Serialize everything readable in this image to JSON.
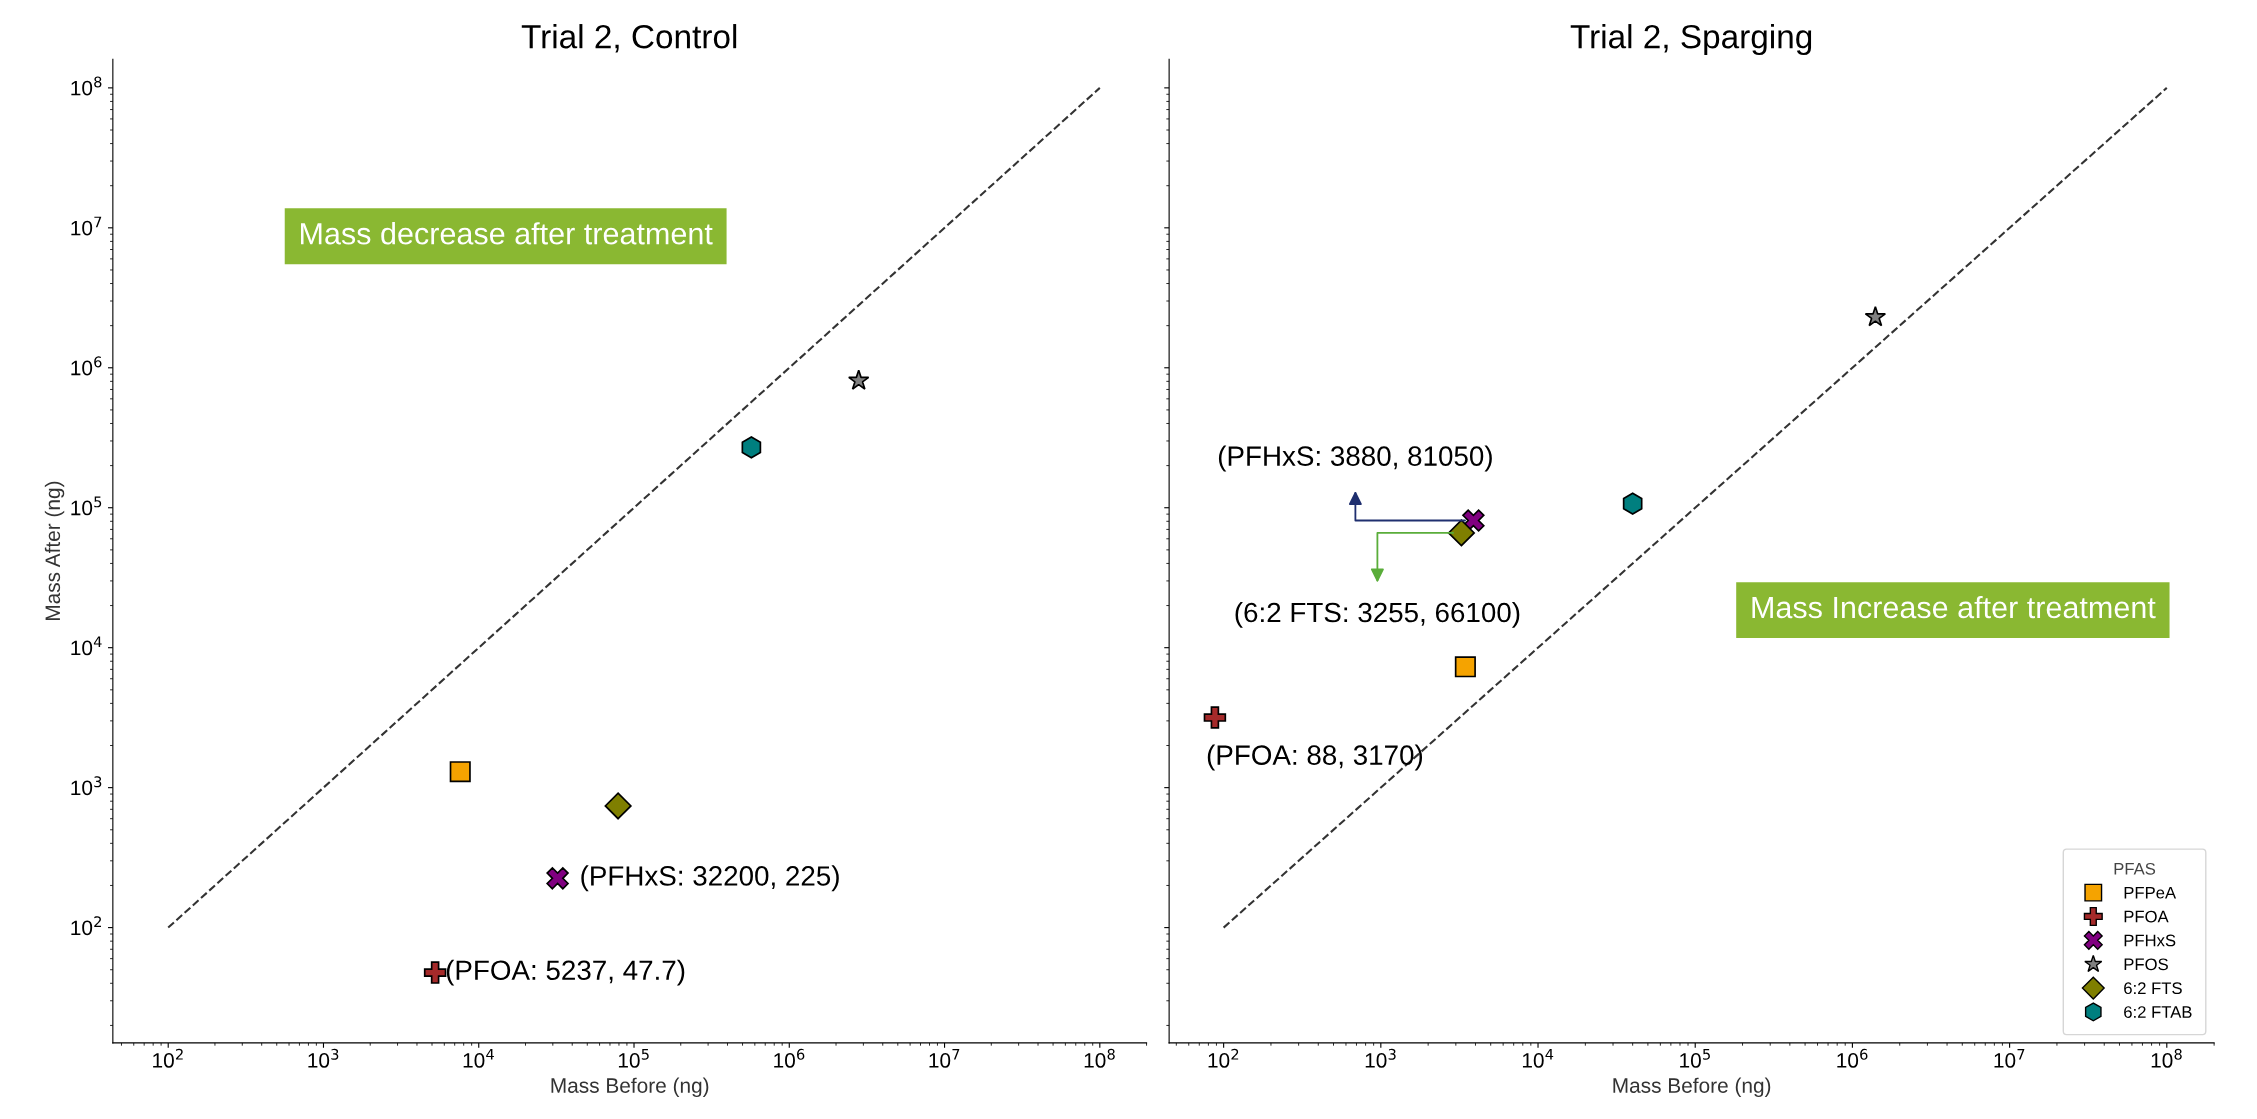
{
  "chart_data": [
    {
      "type": "scatter",
      "title": "Trial 2, Control",
      "xlabel": "Mass Before (ng)",
      "ylabel": "Mass After (ng)",
      "log": "xy",
      "xlim": [
        44,
        200000000
      ],
      "ylim": [
        15,
        160000000
      ],
      "xticks": [
        {
          "value": 100,
          "label": "10$^{2}$"
        },
        {
          "value": 1000,
          "label": "10$^{3}$"
        },
        {
          "value": 10000,
          "label": "10$^{4}$"
        },
        {
          "value": 100000,
          "label": "10$^{5}$"
        },
        {
          "value": 1000000,
          "label": "10$^{6}$"
        },
        {
          "value": 10000000,
          "label": "10$^{7}$"
        },
        {
          "value": 100000000,
          "label": "10$^{8}$"
        }
      ],
      "yticks": [
        {
          "value": 100,
          "label": "10$^{2}$"
        },
        {
          "value": 1000,
          "label": "10$^{3}$"
        },
        {
          "value": 10000,
          "label": "10$^{4}$"
        },
        {
          "value": 100000,
          "label": "10$^{5}$"
        },
        {
          "value": 1000000,
          "label": "10$^{6}$"
        },
        {
          "value": 10000000,
          "label": "10$^{7}$"
        },
        {
          "value": 100000000,
          "label": "10$^{8}$"
        }
      ],
      "grid": false,
      "legend": false,
      "series": [
        {
          "type": "line",
          "x": [
            100,
            100000000
          ],
          "values": [
            100,
            100000000
          ],
          "color": "#333333",
          "line_style": "dashed",
          "marker": "none"
        },
        {
          "x": [
            7600
          ],
          "values": [
            1300
          ],
          "color": "#f5a300",
          "marker": "square"
        },
        {
          "x": [
            5237
          ],
          "values": [
            47.7
          ],
          "color": "#a52a2a",
          "marker": "plus"
        },
        {
          "x": [
            32200
          ],
          "values": [
            225
          ],
          "color": "#800080",
          "marker": "x"
        },
        {
          "x": [
            2800000
          ],
          "values": [
            810000
          ],
          "color": "#808080",
          "marker": "star"
        },
        {
          "x": [
            79000
          ],
          "values": [
            740
          ],
          "color": "#7f7f00",
          "marker": "diamond"
        },
        {
          "x": [
            570000
          ],
          "values": [
            270000
          ],
          "color": "#007f7f"
        }
      ],
      "annotations": [
        {
          "text": "(PFOA: 5237, 47.7)",
          "x": 5237,
          "y": 47.7
        },
        {
          "text": "(PFHxS: 32200, 225)",
          "x": 32200,
          "y": 225
        },
        "Mass decrease after treatment"
      ]
    },
    {
      "type": "scatter",
      "title": "Trial 2, Sparging",
      "xlabel": "Mass Before (ng)",
      "log": "xy",
      "tick_labels": "x",
      "xlim": [
        45,
        200000000
      ],
      "ylim": [
        15,
        160000000
      ],
      "xticks": [
        {
          "value": 100,
          "label": "10$^{2}$"
        },
        {
          "value": 1000,
          "label": "10$^{3}$"
        },
        {
          "value": 10000,
          "label": "10$^{4}$"
        },
        {
          "value": 100000,
          "label": "10$^{5}$"
        },
        {
          "value": 1000000,
          "label": "10$^{6}$"
        },
        {
          "value": 10000000,
          "label": "10$^{7}$"
        },
        {
          "value": 100000000,
          "label": "10$^{8}$"
        }
      ],
      "grid": false,
      "legend": "bottom right",
      "legend_title": "PFAS",
      "yticks": [
        {
          "value": 100,
          "label": null
        },
        {
          "value": 1000,
          "label": null
        },
        {
          "value": 10000,
          "label": null
        },
        {
          "value": 100000,
          "label": null
        },
        {
          "value": 1000000,
          "label": null
        },
        {
          "value": 10000000,
          "label": null
        },
        {
          "value": 100000000,
          "label": null
        }
      ],
      "series": [
        {
          "type": "line",
          "x": [
            100,
            100000000
          ],
          "values": [
            100,
            100000000
          ],
          "color": "#333333",
          "line_style": "dashed",
          "marker": "none"
        },
        {
          "name": "PFPeA",
          "x": [
            3450
          ],
          "values": [
            7300
          ],
          "color": "#f5a300",
          "marker": "square"
        },
        {
          "name": "PFOA",
          "x": [
            88
          ],
          "values": [
            3170
          ],
          "color": "#a52a2a",
          "marker": "plus"
        },
        {
          "name": "PFHxS",
          "x": [
            3880
          ],
          "values": [
            81050
          ],
          "color": "#800080",
          "marker": "x"
        },
        {
          "name": "PFOS",
          "x": [
            1400000
          ],
          "values": [
            2300000
          ],
          "color": "#808080",
          "marker": "star"
        },
        {
          "name": "6:2 FTS",
          "x": [
            3255
          ],
          "values": [
            66100
          ],
          "color": "#7f7f00",
          "marker": "diamond"
        },
        {
          "name": "6:2 FTAB",
          "x": [
            40000
          ],
          "values": [
            107000
          ],
          "color": "#007f7f"
        }
      ],
      "annotations": [
        {
          "text": "(PFHxS: 3880, 81050)",
          "x": 3880,
          "y": 81050
        },
        {
          "text": "(6:2 FTS: 3255, 66100)",
          "x": 3255,
          "y": 66100
        },
        {
          "text": "(PFOA: 88, 3170)",
          "x": 88,
          "y": 3170
        },
        "Mass Increase after treatment"
      ]
    }
  ]
}
